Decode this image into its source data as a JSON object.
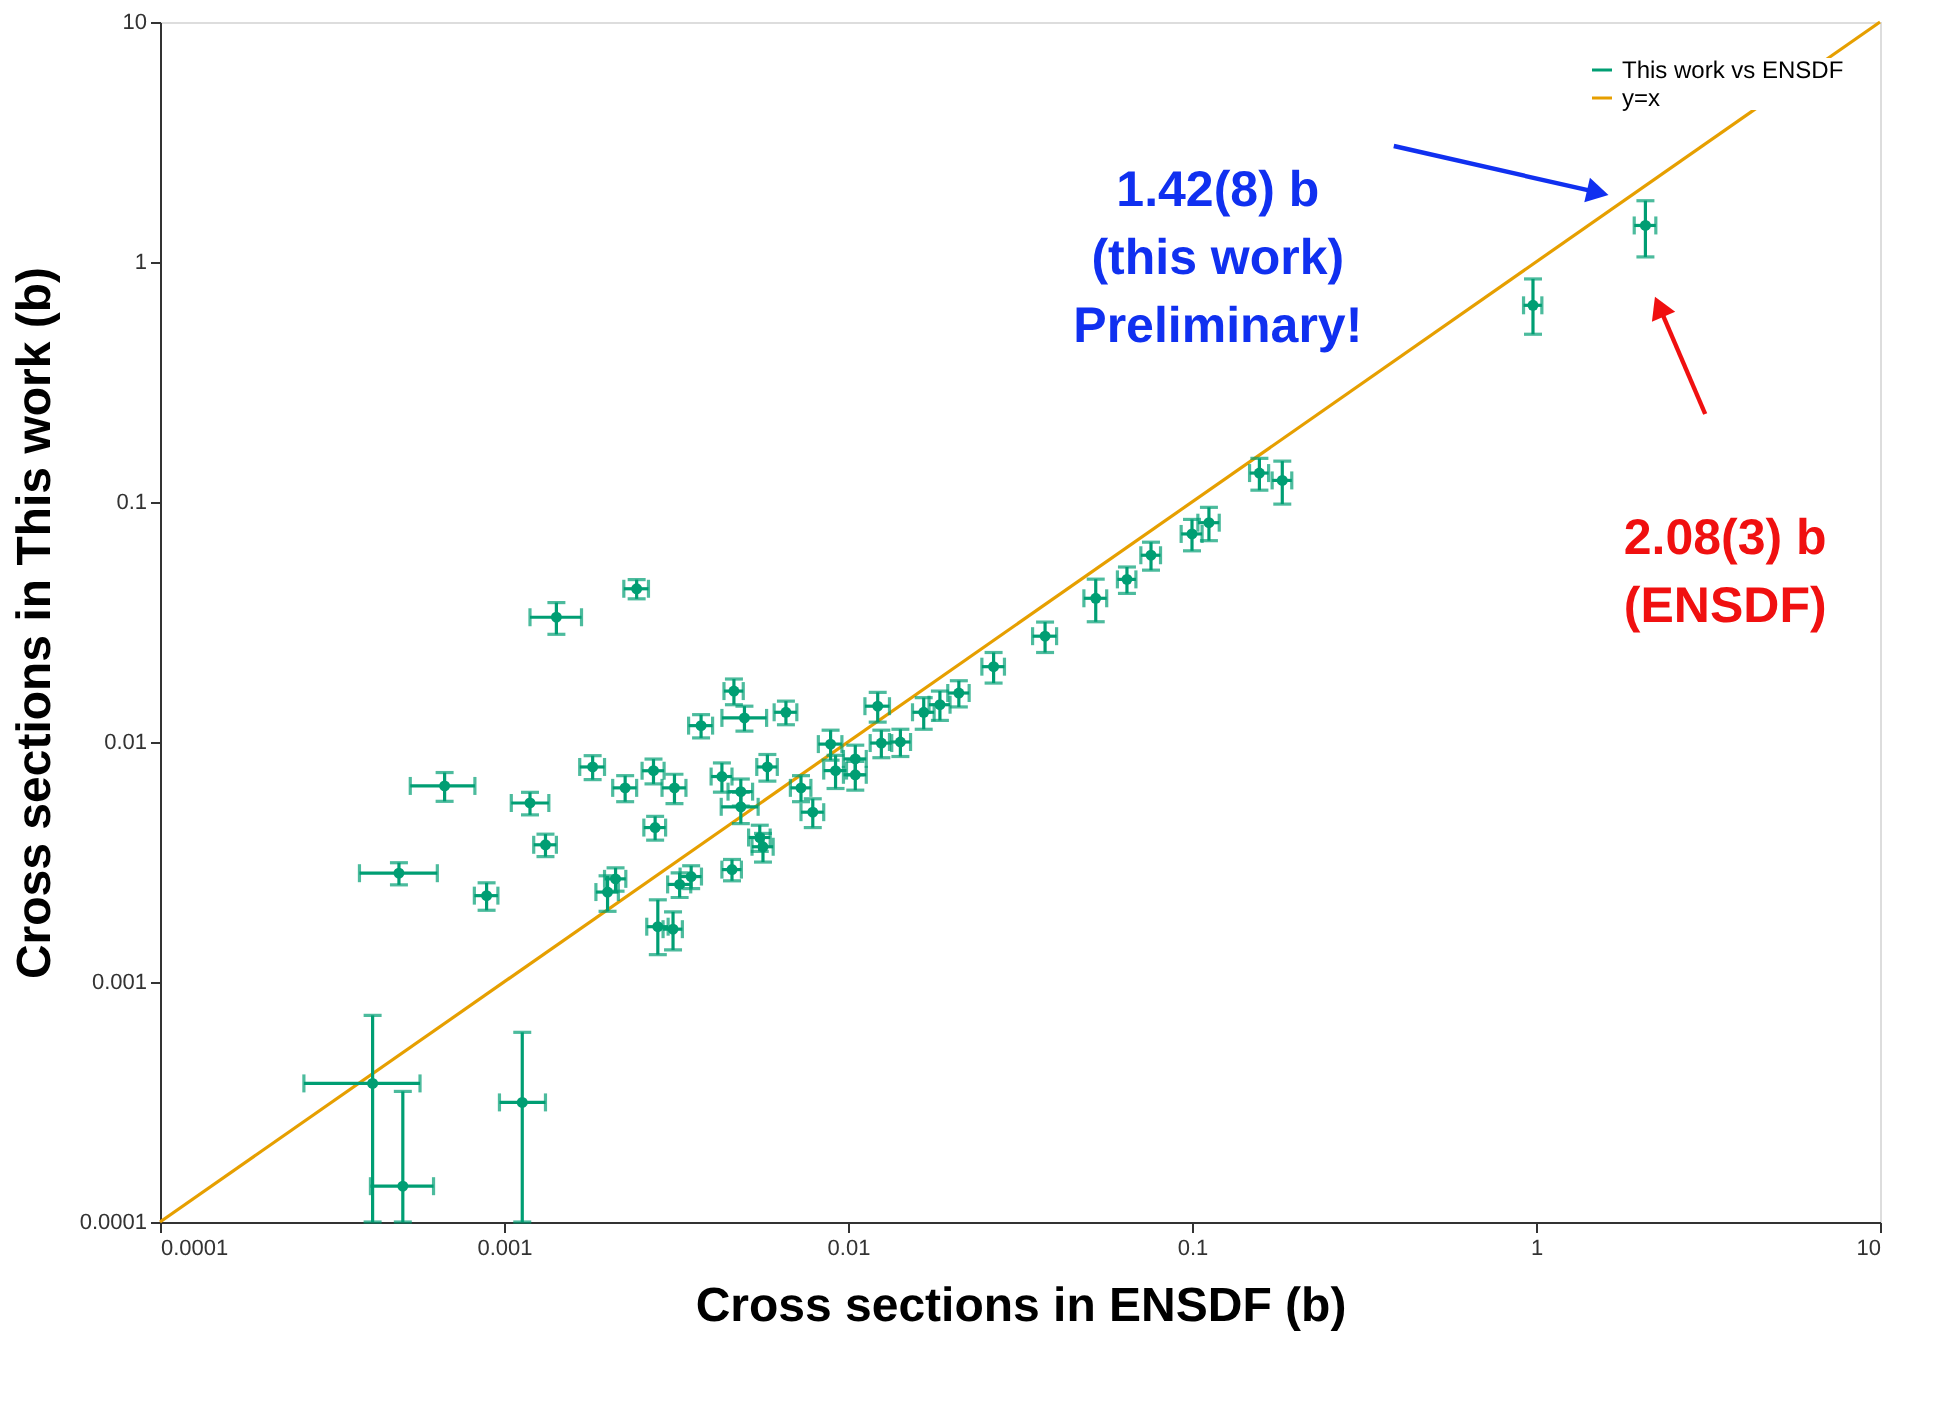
{
  "chart_data": {
    "type": "scatter",
    "xlabel": "Cross sections in ENSDF (b)",
    "ylabel": "Cross sections in This work (b)",
    "log": "xy",
    "xlim": [
      0.0001,
      10
    ],
    "ylim": [
      0.0001,
      10
    ],
    "xticks": [
      0.0001,
      0.001,
      0.01,
      0.1,
      1,
      10
    ],
    "yticks": [
      0.0001,
      0.001,
      0.01,
      0.1,
      1,
      10
    ],
    "legend": "top right",
    "series": [
      {
        "name": "This work vs ENSDF",
        "color": "#009e73",
        "marker": "circle",
        "x": [
          2.08,
          0.98,
          0.157,
          0.183,
          0.1,
          0.112,
          0.076,
          0.0647,
          0.0525,
          0.0374,
          0.0265,
          0.021,
          0.0185,
          0.0166,
          0.0122,
          0.0142,
          0.0125,
          0.0089,
          0.0105,
          0.0105,
          0.0092,
          0.0079,
          0.00243,
          0.00142,
          0.00466,
          0.005,
          0.0066,
          0.00374,
          0.00181,
          0.000672,
          0.00119,
          0.00225,
          0.00272,
          0.00313,
          0.0043,
          0.00488,
          0.00583,
          0.00488,
          0.0073,
          0.00275,
          0.00132,
          0.00554,
          0.00566,
          0.000495,
          0.00089,
          0.00211,
          0.002,
          0.00324,
          0.0035,
          0.0046,
          0.0028,
          0.0031,
          0.000415,
          0.000508,
          0.00113
        ],
        "values": [
          1.42,
          0.66,
          0.132,
          0.123,
          0.0736,
          0.082,
          0.06,
          0.0476,
          0.0397,
          0.0276,
          0.0206,
          0.016,
          0.0143,
          0.0133,
          0.0141,
          0.01,
          0.0099,
          0.0098,
          0.0085,
          0.0073,
          0.0076,
          0.0051,
          0.0435,
          0.0331,
          0.0163,
          0.0126,
          0.0133,
          0.0117,
          0.00787,
          0.00656,
          0.00557,
          0.00644,
          0.00759,
          0.00644,
          0.00718,
          0.00621,
          0.00787,
          0.00537,
          0.00644,
          0.0044,
          0.00373,
          0.004,
          0.00366,
          0.00284,
          0.00229,
          0.00269,
          0.00237,
          0.00255,
          0.00275,
          0.00294,
          0.0017,
          0.00166,
          0.000378,
          0.000141,
          0.000315
        ],
        "errors": [
          [
            1.05,
            1.8
          ],
          [
            0.5,
            0.85
          ],
          0.02,
          0.025,
          0.011,
          0.013,
          0.008,
          0.006,
          0.008,
          0.004,
          0.003,
          0.002,
          0.002,
          0.002,
          0.002,
          0.0013,
          0.0013,
          0.0014,
          0.0012,
          0.001,
          0.0012,
          0.0007,
          0.004,
          0.005,
          0.002,
          0.0015,
          0.0015,
          0.0013,
          0.0009,
          0.0009,
          0.0006,
          0.0008,
          0.0009,
          0.0009,
          0.001,
          0.0008,
          0.001,
          0.0008,
          0.0008,
          0.0005,
          0.0004,
          0.0005,
          0.0005,
          0.0003,
          0.0003,
          0.0003,
          0.0004,
          0.0003,
          0.0003,
          0.0003,
          [
            0.0013,
            0.0022
          ],
          0.0003,
          [
            0.0001,
            0.000726
          ],
          [
            0.0001,
            0.00035
          ],
          [
            0.0001,
            0.000617
          ]
        ],
        "xerrors": [
          0.15,
          0.06,
          0.01,
          0.012,
          0.007,
          0.008,
          0.005,
          0.004,
          0.004,
          0.003,
          0.002,
          0.0015,
          0.0013,
          0.0012,
          0.001,
          0.001,
          0.0009,
          0.0007,
          0.0008,
          0.0008,
          0.0007,
          0.0006,
          0.0002,
          [
            0.00119,
            0.00168
          ],
          0.0003,
          [
            0.0043,
            0.0058
          ],
          0.0005,
          0.0003,
          0.00015,
          [
            0.000534,
            0.000823
          ],
          [
            0.00105,
            0.00135
          ],
          0.00018,
          0.0002,
          0.00025,
          0.0003,
          0.0004,
          0.0004,
          0.0006,
          0.0005,
          0.0002,
          0.0001,
          0.0004,
          0.0004,
          [
            0.00038,
            0.00064
          ],
          7e-05,
          0.00015,
          0.00015,
          0.00025,
          0.00025,
          0.0003,
          0.0002,
          0.0002,
          [
            0.000262,
            0.00057
          ],
          [
            0.000409,
            0.000624
          ],
          [
            0.00097,
            0.00132
          ]
        ]
      },
      {
        "name": "y=x",
        "type": "line",
        "color": "#e69f00",
        "x": [
          0.0001,
          10
        ],
        "values": [
          0.0001,
          10
        ]
      }
    ],
    "annotations": [
      "1.42(8) b\n(this work)\nPreliminary!",
      "2.08(3) b\n(ENSDF)"
    ]
  }
}
